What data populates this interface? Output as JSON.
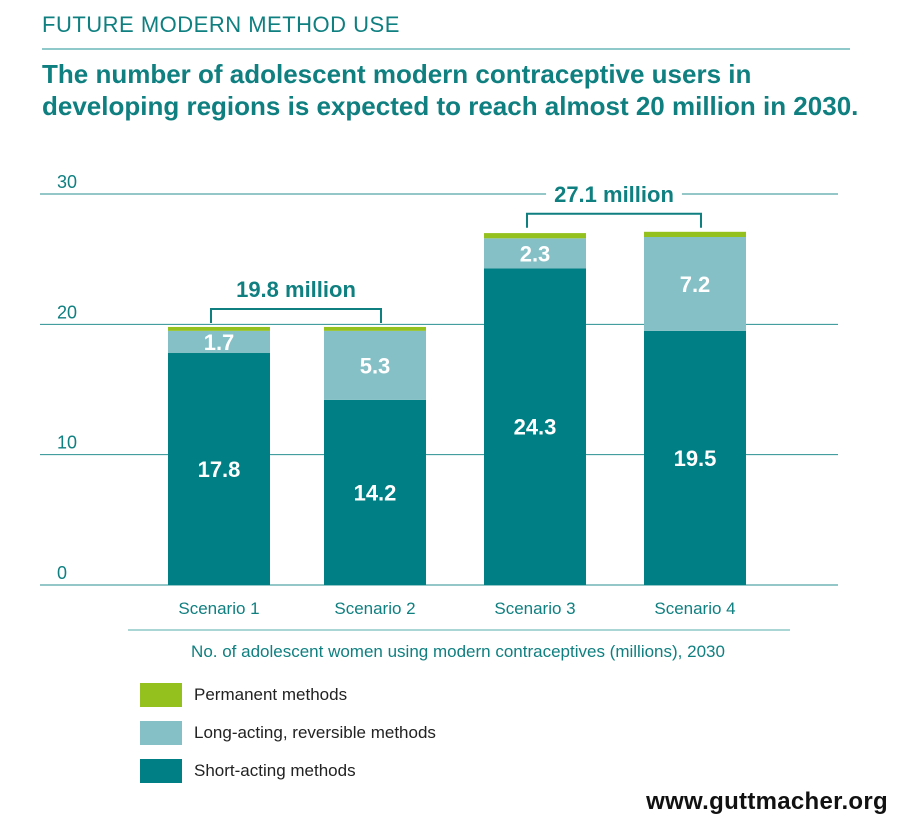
{
  "section_label": "FUTURE MODERN METHOD USE",
  "headline": "The number of adolescent modern contraceptive users in developing regions is expected to reach almost 20 million in 2030.",
  "caption": "No. of adolescent women using modern contraceptives (millions), 2030",
  "source_url": "www.guttmacher.org",
  "colors": {
    "permanent": "#95c11f",
    "long_acting": "#84c0c6",
    "short_acting": "#007f84",
    "accent": "#0f7f80"
  },
  "chart_data": {
    "type": "bar",
    "stacked": true,
    "categories": [
      "Scenario 1",
      "Scenario 2",
      "Scenario 3",
      "Scenario 4"
    ],
    "series": [
      {
        "name": "Short-acting methods",
        "key": "short_acting",
        "values": [
          17.8,
          14.2,
          24.3,
          19.5
        ],
        "show_labels": true
      },
      {
        "name": "Long-acting, reversible methods",
        "key": "long_acting",
        "values": [
          1.7,
          5.3,
          2.3,
          7.2
        ],
        "show_labels": true
      },
      {
        "name": "Permanent methods",
        "key": "permanent",
        "values": [
          0.3,
          0.3,
          0.4,
          0.4
        ],
        "show_labels": false
      }
    ],
    "ylim": [
      0,
      30
    ],
    "yticks": [
      0,
      10,
      20,
      30
    ],
    "grid": true,
    "annotations": [
      {
        "text": "19.8 million",
        "from_category": 0,
        "to_category": 1,
        "value": 19.8
      },
      {
        "text": "27.1 million",
        "from_category": 2,
        "to_category": 3,
        "value": 27.1
      }
    ],
    "legend": {
      "placement": "bottom-left",
      "order": [
        "permanent",
        "long_acting",
        "short_acting"
      ],
      "labels": [
        "Permanent methods",
        "Long-acting, reversible methods",
        "Short-acting methods"
      ]
    }
  }
}
